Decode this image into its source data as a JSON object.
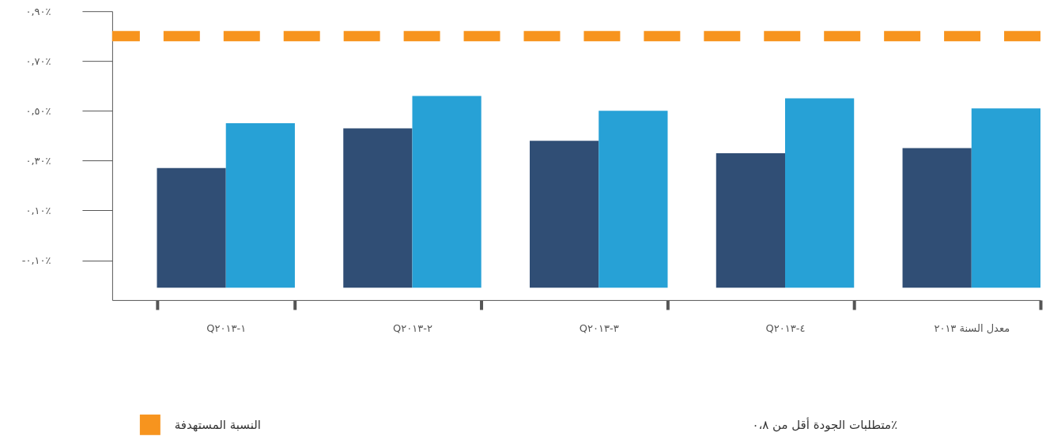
{
  "chart_data": {
    "type": "bar",
    "categories": [
      "Q١-٢٠١٣",
      "Q٢-٢٠١٣",
      "Q٣-٢٠١٣",
      "Q٤-٢٠١٣",
      "معدل السنة ٢٠١٣"
    ],
    "series": [
      {
        "color": "#304e75",
        "base": [
          -0.21,
          -0.21,
          -0.21,
          -0.21,
          -0.21
        ],
        "values": [
          0.48,
          0.64,
          0.59,
          0.54,
          0.56
        ]
      },
      {
        "color": "#27a1d6",
        "base": [
          -0.21,
          -0.21,
          -0.21,
          -0.21,
          -0.21
        ],
        "values": [
          0.66,
          0.77,
          0.71,
          0.76,
          0.72
        ]
      }
    ],
    "ylim": [
      -0.26,
      0.9
    ],
    "yticks": [
      {
        "value": 0.9,
        "label": "٠,٩٠٪"
      },
      {
        "value": 0.7,
        "label": "٠,٧٠٪"
      },
      {
        "value": 0.5,
        "label": "٠,٥٠٪"
      },
      {
        "value": 0.3,
        "label": "٠,٣٠٪"
      },
      {
        "value": 0.1,
        "label": "٠,١٠٪"
      },
      {
        "value": -0.1,
        "label": "-٠,١٠٪"
      }
    ],
    "ref_lines": [
      {
        "axis": "y",
        "value": 0.8,
        "label": "النسبة المستهدفة",
        "color": "#f7941e",
        "line_style": "dashed"
      }
    ],
    "annotations": [
      "متطلبات الجودة أقل من ٠،٨٪"
    ],
    "legend": "bottom"
  }
}
